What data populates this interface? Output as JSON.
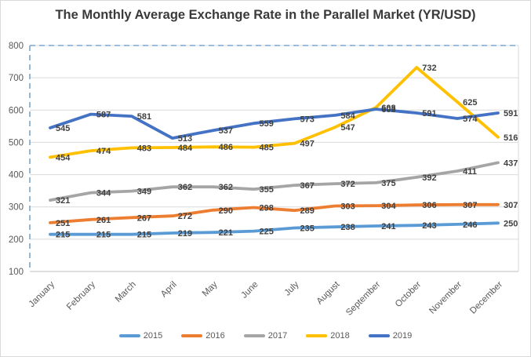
{
  "title": "The Monthly Average Exchange Rate in the Parallel Market (YR/USD)",
  "chart_data": {
    "type": "line",
    "title": "The Monthly Average Exchange Rate in the Parallel Market (YR/USD)",
    "categories": [
      "January",
      "February",
      "March",
      "April",
      "May",
      "June",
      "July",
      "August",
      "September",
      "October",
      "November",
      "December"
    ],
    "series": [
      {
        "name": "2015",
        "color": "#5B9BD5",
        "values": [
          215,
          215,
          215,
          219,
          221,
          225,
          235,
          238,
          241,
          243,
          246,
          250
        ]
      },
      {
        "name": "2016",
        "color": "#ED7D31",
        "values": [
          251,
          261,
          267,
          272,
          290,
          298,
          289,
          303,
          304,
          306,
          307,
          307
        ]
      },
      {
        "name": "2017",
        "color": "#A5A5A5",
        "values": [
          321,
          344,
          349,
          362,
          362,
          355,
          367,
          372,
          375,
          392,
          411,
          437
        ]
      },
      {
        "name": "2018",
        "color": "#FFC000",
        "values": [
          454,
          474,
          483,
          484,
          486,
          485,
          497,
          547,
          608,
          732,
          625,
          516
        ]
      },
      {
        "name": "2019",
        "color": "#4472C4",
        "values": [
          545,
          587,
          581,
          513,
          537,
          559,
          573,
          584,
          603,
          591,
          574,
          591
        ]
      }
    ],
    "ylim": [
      100,
      800
    ],
    "yticks": [
      100,
      200,
      300,
      400,
      500,
      600,
      700,
      800
    ],
    "grid": true,
    "legend_position": "bottom",
    "data_labels": true,
    "xlabel": "",
    "ylabel": ""
  },
  "colors": {
    "grid": "#d9d9d9",
    "axis_line": "#bfbfbf",
    "dashed_border": "#7ca6cd",
    "tick_text": "#595959",
    "data_label_text": "#404040",
    "title_text": "#3a3a3a"
  }
}
